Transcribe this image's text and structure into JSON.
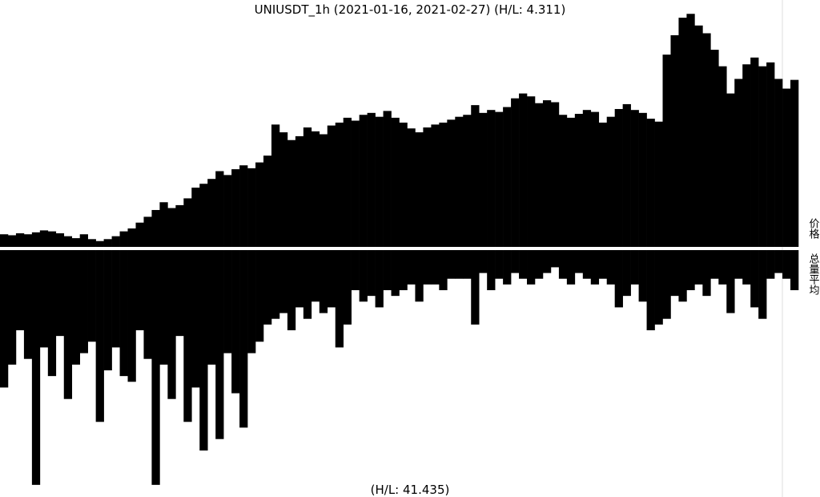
{
  "chart_data": [
    {
      "type": "bar",
      "title": "UNIUSDT_1h (2021-01-16, 2021-02-27) (H/L: 4.311)",
      "y_label": "价格",
      "color": "#000000",
      "inverted": false,
      "ylim": [
        6.2,
        30.8
      ],
      "values": [
        7.5,
        7.4,
        7.6,
        7.5,
        7.7,
        7.9,
        7.8,
        7.6,
        7.3,
        7.1,
        7.5,
        7.0,
        6.8,
        7.0,
        7.3,
        7.8,
        8.1,
        8.7,
        9.3,
        10.0,
        10.8,
        10.2,
        10.5,
        11.2,
        12.3,
        12.7,
        13.2,
        14.0,
        13.6,
        14.2,
        14.6,
        14.3,
        14.9,
        15.6,
        18.8,
        18.0,
        17.2,
        17.6,
        18.5,
        18.1,
        17.8,
        18.7,
        19.0,
        19.5,
        19.2,
        19.8,
        20.0,
        19.6,
        20.2,
        19.5,
        19.0,
        18.4,
        18.0,
        18.5,
        18.8,
        19.0,
        19.3,
        19.6,
        19.8,
        20.8,
        20.0,
        20.3,
        20.1,
        20.6,
        21.5,
        22.0,
        21.7,
        21.0,
        21.3,
        21.1,
        19.8,
        19.5,
        19.9,
        20.3,
        20.1,
        19.0,
        19.6,
        20.4,
        20.9,
        20.3,
        20.0,
        19.4,
        19.1,
        26.0,
        28.0,
        29.8,
        30.2,
        29.0,
        28.2,
        26.5,
        24.8,
        22.0,
        23.5,
        25.0,
        25.7,
        24.8,
        25.2,
        23.5,
        22.5,
        23.4
      ]
    },
    {
      "type": "bar",
      "title": "(H/L: 41.435)",
      "y_label": "总量平均",
      "color": "#000000",
      "inverted": true,
      "ylim": [
        0,
        42
      ],
      "values": [
        24,
        20,
        14,
        19,
        41,
        17,
        22,
        15,
        26,
        20,
        18,
        16,
        30,
        21,
        17,
        22,
        23,
        14,
        19,
        41,
        20,
        26,
        15,
        30,
        24,
        35,
        20,
        33,
        18,
        25,
        31,
        18,
        16,
        13,
        12,
        11,
        14,
        10,
        12,
        9,
        11,
        10,
        17,
        13,
        7,
        9,
        8,
        10,
        7,
        8,
        7,
        6,
        9,
        6,
        6,
        7,
        5,
        5,
        5,
        13,
        4,
        7,
        5,
        6,
        4,
        5,
        6,
        5,
        4,
        3,
        5,
        6,
        4,
        5,
        6,
        5,
        6,
        10,
        8,
        6,
        9,
        14,
        13,
        12,
        8,
        9,
        7,
        6,
        8,
        5,
        6,
        11,
        5,
        6,
        10,
        12,
        5,
        4,
        5,
        7
      ]
    }
  ]
}
